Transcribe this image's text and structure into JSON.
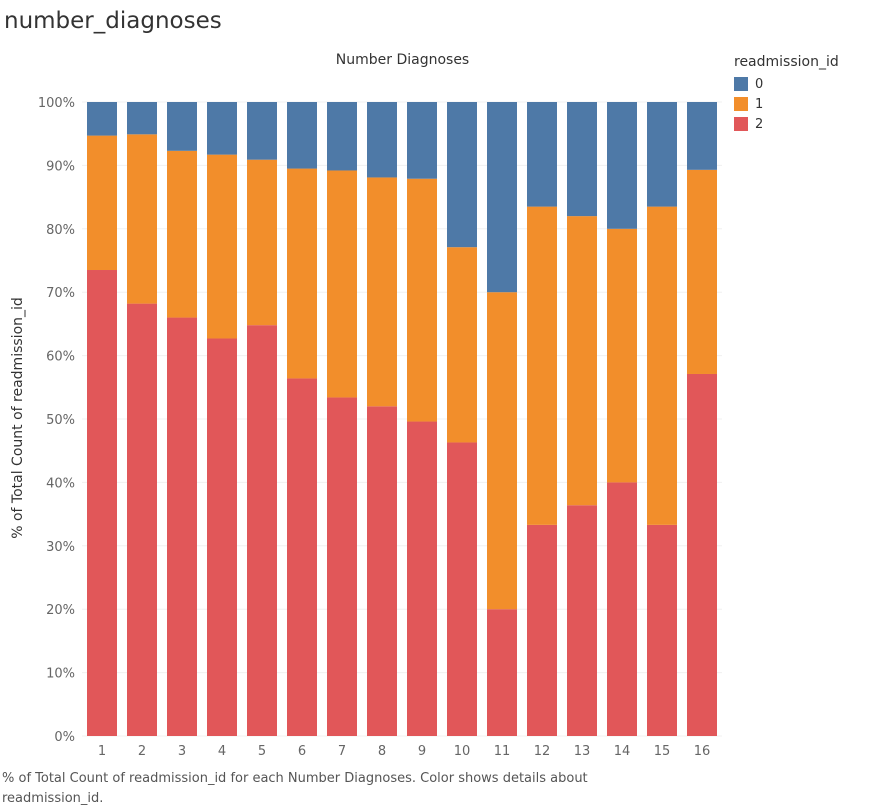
{
  "page": {
    "title": "number_diagnoses",
    "caption": "% of Total Count of readmission_id for each Number Diagnoses.  Color shows details about readmission_id."
  },
  "chart_data": {
    "type": "bar",
    "stacked": "percent",
    "title": "Number Diagnoses",
    "xlabel": "",
    "ylabel": "% of Total Count of readmission_id",
    "ylim": [
      0,
      100
    ],
    "yticks": [
      "0%",
      "10%",
      "20%",
      "30%",
      "40%",
      "50%",
      "60%",
      "70%",
      "80%",
      "90%",
      "100%"
    ],
    "categories": [
      "1",
      "2",
      "3",
      "4",
      "5",
      "6",
      "7",
      "8",
      "9",
      "10",
      "11",
      "12",
      "13",
      "14",
      "15",
      "16"
    ],
    "legend": {
      "title": "readmission_id",
      "position": "right"
    },
    "series": [
      {
        "name": "2",
        "color": "#e15759",
        "values": [
          73.5,
          68.2,
          66.0,
          62.7,
          64.8,
          56.4,
          53.4,
          52.0,
          49.6,
          46.3,
          20.0,
          33.3,
          36.4,
          40.0,
          33.3,
          57.1
        ]
      },
      {
        "name": "1",
        "color": "#f28e2b",
        "values": [
          21.2,
          26.7,
          26.3,
          29.0,
          26.1,
          33.1,
          35.8,
          36.1,
          38.3,
          30.8,
          50.0,
          50.2,
          45.6,
          40.0,
          50.2,
          32.2
        ]
      },
      {
        "name": "0",
        "color": "#4e79a7",
        "values": [
          5.3,
          5.1,
          7.7,
          8.3,
          9.1,
          10.5,
          10.8,
          11.9,
          12.1,
          22.9,
          30.0,
          16.5,
          18.0,
          20.0,
          16.5,
          10.7
        ]
      }
    ]
  }
}
